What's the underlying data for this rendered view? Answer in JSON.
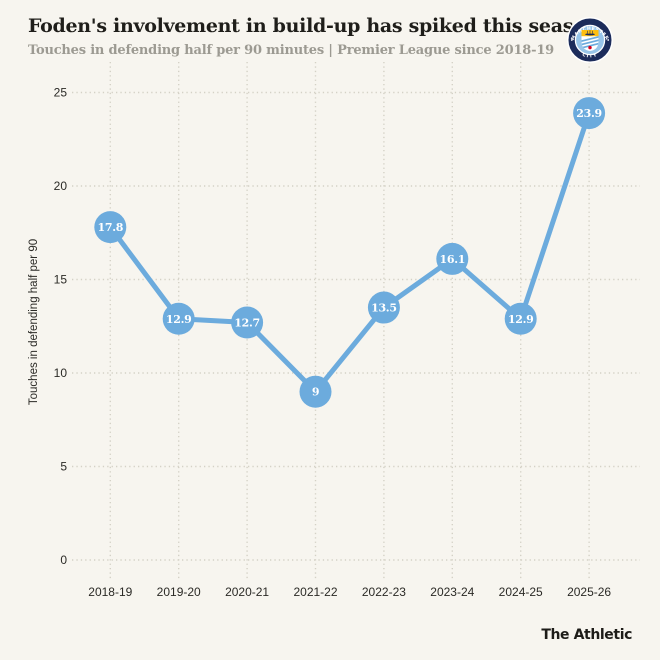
{
  "header": {
    "title": "Foden's involvement in build-up has spiked this season",
    "subtitle": "Touches in defending half per 90 minutes | Premier League since 2018-19"
  },
  "badge": {
    "top_text": "MANCHESTER",
    "bottom_text": "CITY",
    "ring_color": "#1C2C5B",
    "sky_color": "#98C5E9",
    "ship_gold": "#FDBE11",
    "rose_red": "#D6001C"
  },
  "footer": {
    "brand": "The Athletic"
  },
  "chart_data": {
    "type": "line",
    "categories": [
      "2018-19",
      "2019-20",
      "2020-21",
      "2021-22",
      "2022-23",
      "2023-24",
      "2024-25",
      "2025-26"
    ],
    "values": [
      17.8,
      12.9,
      12.7,
      9,
      13.5,
      16.1,
      12.9,
      23.9
    ],
    "title": "Foden's involvement in build-up has spiked this season",
    "xlabel": "",
    "ylabel": "Touches in defending half per 90",
    "ylim": [
      0,
      25
    ],
    "yticks": [
      0,
      5,
      10,
      15,
      20,
      25
    ],
    "grid": "dotted",
    "legend": "none",
    "line_color": "#6CABDD",
    "marker_color": "#6CABDD",
    "marker_label_color": "#ffffff",
    "grid_color": "#d4d1c6",
    "axis_text_color": "#2b2a26"
  }
}
